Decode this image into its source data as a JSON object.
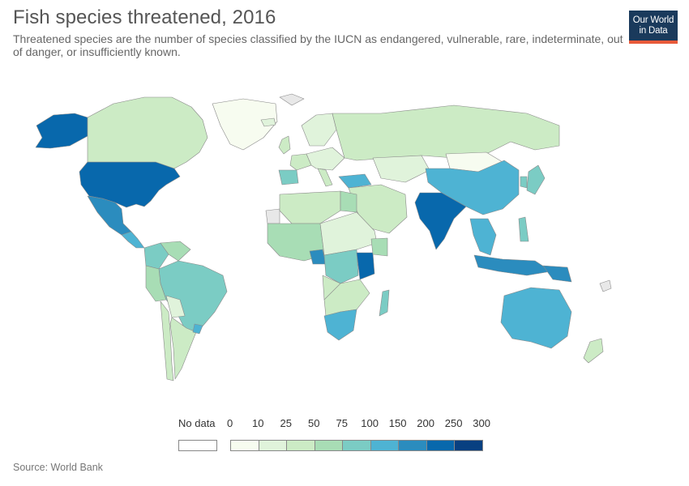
{
  "header": {
    "title": "Fish species threatened, 2016",
    "subtitle": "Threatened species are the number of species classified by the IUCN as endangered, vulnerable, rare, indeterminate, out of danger, or insufficiently known.",
    "logo_line1": "Our World",
    "logo_line2": "in Data"
  },
  "legend": {
    "no_data_label": "No data",
    "no_data_color": "#e8e8e8",
    "ticks": [
      "0",
      "10",
      "25",
      "50",
      "75",
      "100",
      "150",
      "200",
      "250",
      "300"
    ],
    "colors": [
      "#f7fcf0",
      "#e0f3db",
      "#ccebc5",
      "#a8ddb5",
      "#7bccc4",
      "#4eb3d3",
      "#2b8cbe",
      "#0868ac",
      "#084081"
    ]
  },
  "source": "Source: World Bank",
  "chart_data": {
    "type": "choropleth",
    "metric": "Fish species threatened",
    "year": 2016,
    "scale_breaks": [
      0,
      10,
      25,
      50,
      75,
      100,
      150,
      200,
      250,
      300
    ],
    "regions": [
      {
        "name": "United States",
        "bin": 7
      },
      {
        "name": "Alaska",
        "bin": 7
      },
      {
        "name": "Canada",
        "bin": 2
      },
      {
        "name": "Greenland",
        "bin": 0
      },
      {
        "name": "Mexico",
        "bin": 6
      },
      {
        "name": "Central America",
        "bin": 5
      },
      {
        "name": "Colombia",
        "bin": 4
      },
      {
        "name": "Venezuela",
        "bin": 3
      },
      {
        "name": "Brazil",
        "bin": 4
      },
      {
        "name": "Peru",
        "bin": 3
      },
      {
        "name": "Bolivia",
        "bin": 1
      },
      {
        "name": "Argentina",
        "bin": 2
      },
      {
        "name": "Chile",
        "bin": 2
      },
      {
        "name": "Uruguay",
        "bin": 5
      },
      {
        "name": "Iceland",
        "bin": 1
      },
      {
        "name": "United Kingdom",
        "bin": 2
      },
      {
        "name": "Spain",
        "bin": 4
      },
      {
        "name": "France",
        "bin": 2
      },
      {
        "name": "Scandinavia",
        "bin": 1
      },
      {
        "name": "Central Europe",
        "bin": 1
      },
      {
        "name": "Italy",
        "bin": 2
      },
      {
        "name": "Turkey",
        "bin": 5
      },
      {
        "name": "Russia",
        "bin": 2
      },
      {
        "name": "Kazakhstan",
        "bin": 1
      },
      {
        "name": "Middle East",
        "bin": 2
      },
      {
        "name": "North Africa",
        "bin": 2
      },
      {
        "name": "Egypt",
        "bin": 3
      },
      {
        "name": "West Africa",
        "bin": 3
      },
      {
        "name": "Sahel",
        "bin": 1
      },
      {
        "name": "Gabon",
        "bin": 6
      },
      {
        "name": "DR Congo",
        "bin": 4
      },
      {
        "name": "Tanzania",
        "bin": 7
      },
      {
        "name": "Kenya",
        "bin": 3
      },
      {
        "name": "Angola",
        "bin": 2
      },
      {
        "name": "Southern Africa",
        "bin": 2
      },
      {
        "name": "South Africa",
        "bin": 5
      },
      {
        "name": "Madagascar",
        "bin": 4
      },
      {
        "name": "India",
        "bin": 7
      },
      {
        "name": "Mongolia",
        "bin": 0
      },
      {
        "name": "China",
        "bin": 5
      },
      {
        "name": "Japan",
        "bin": 4
      },
      {
        "name": "Korea",
        "bin": 4
      },
      {
        "name": "Southeast Asia",
        "bin": 5
      },
      {
        "name": "Philippines",
        "bin": 4
      },
      {
        "name": "Indonesia",
        "bin": 6
      },
      {
        "name": "Papua New Guinea",
        "bin": 6
      },
      {
        "name": "Australia",
        "bin": 5
      },
      {
        "name": "New Zealand",
        "bin": 2
      }
    ]
  }
}
